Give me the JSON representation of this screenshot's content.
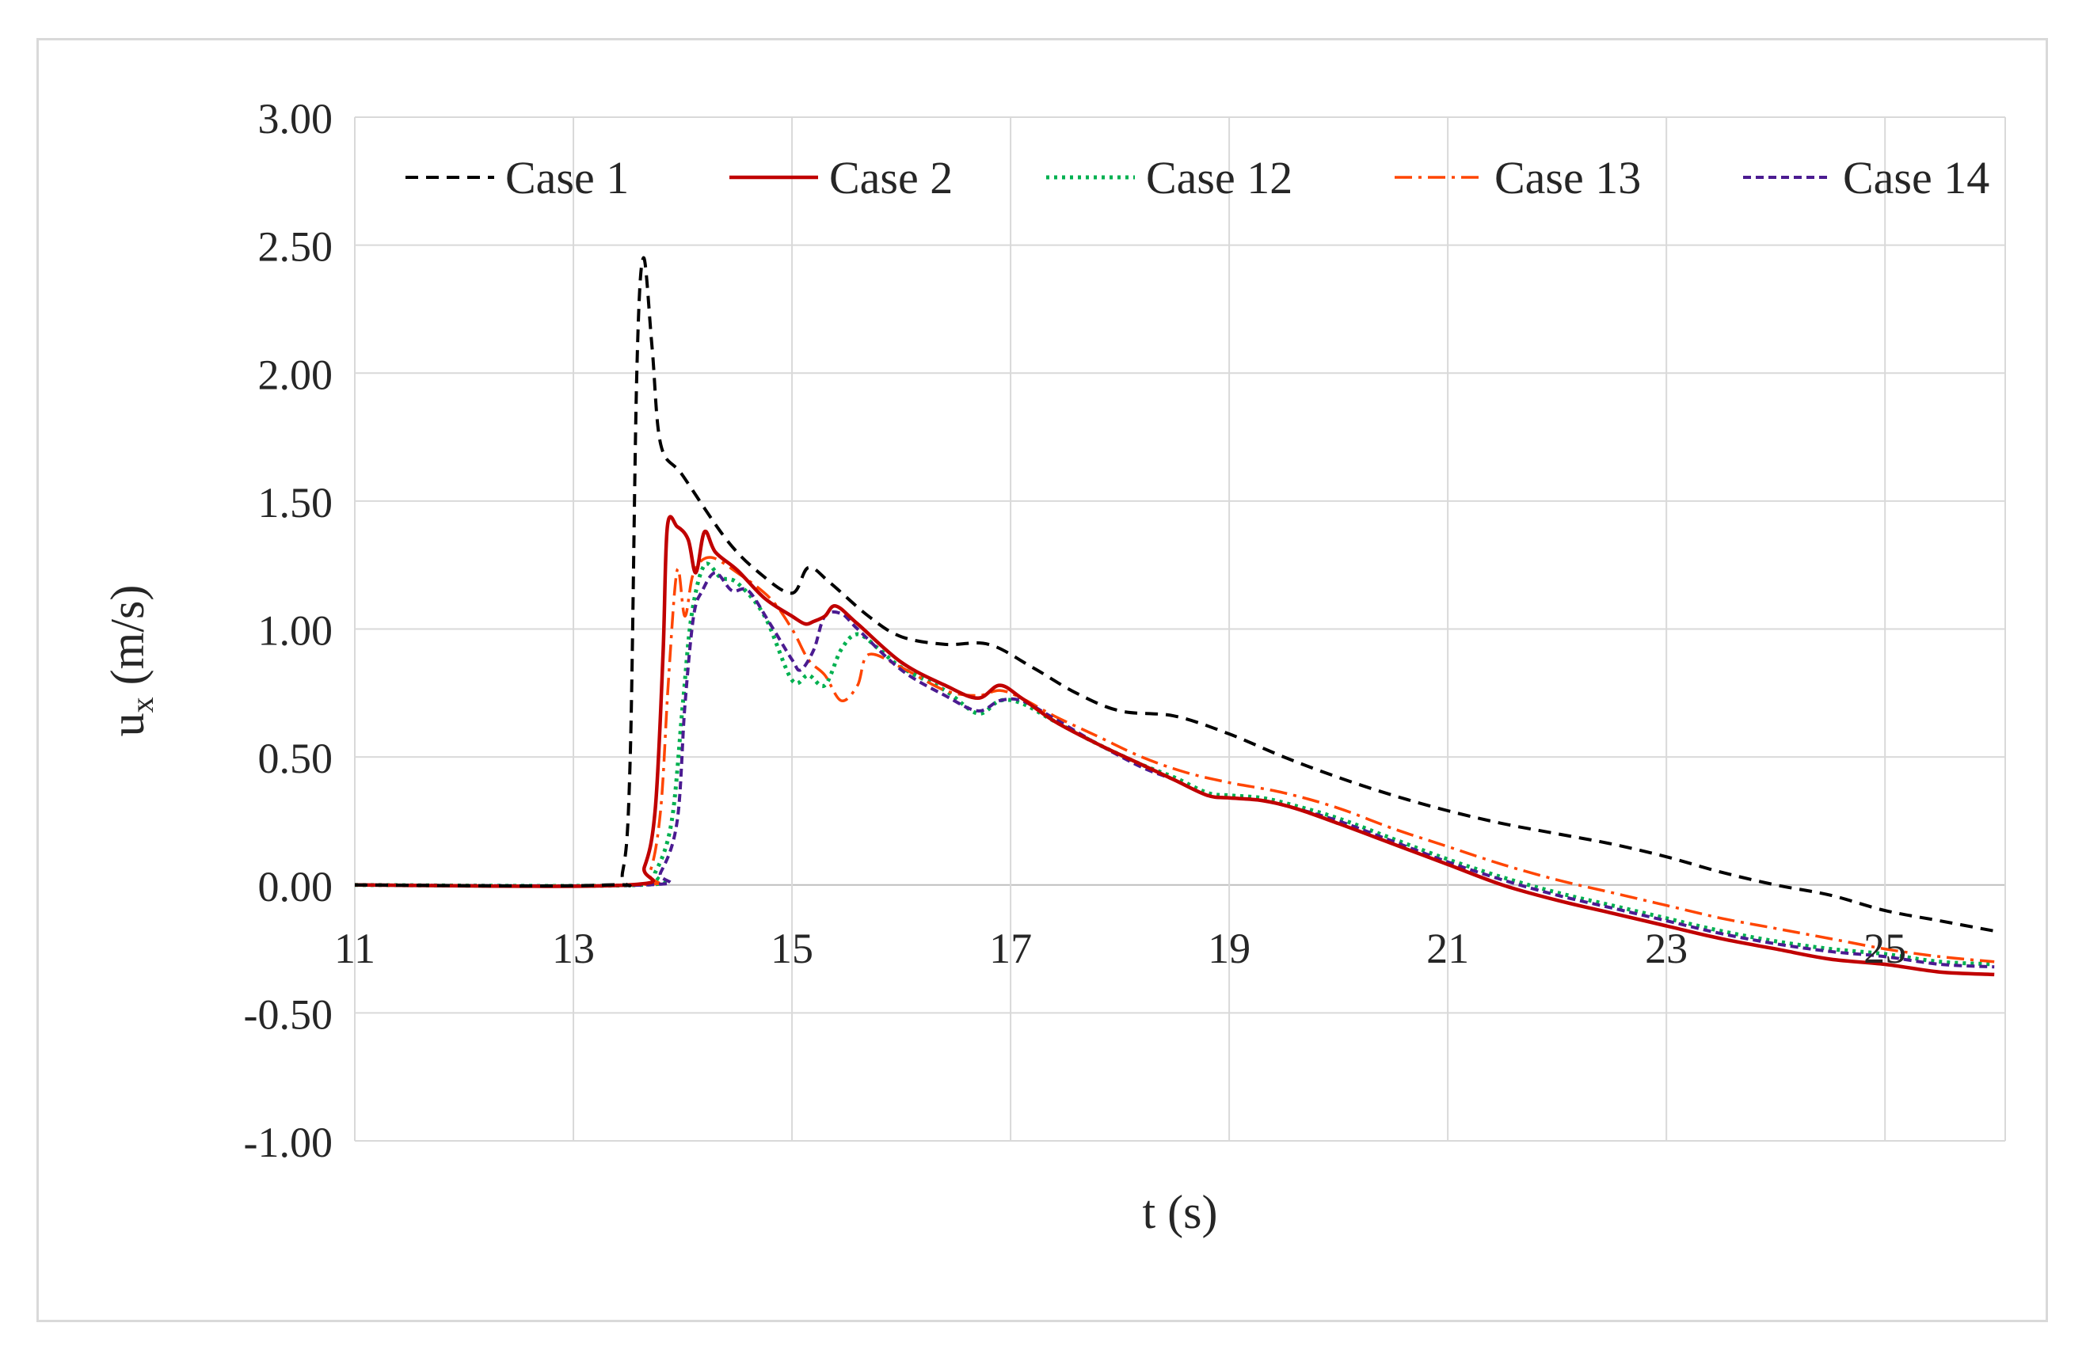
{
  "chart_data": {
    "type": "line",
    "title": "",
    "xlabel": "t (s)",
    "ylabel_main": "u",
    "ylabel_sub": "x",
    "ylabel_rest": " (m/s)",
    "xlim": [
      11,
      26.1
    ],
    "ylim": [
      -1.0,
      3.0
    ],
    "x_ticks": [
      11,
      13,
      15,
      17,
      19,
      21,
      23,
      25
    ],
    "x_tick_labels": [
      "11",
      "13",
      "15",
      "17",
      "19",
      "21",
      "23",
      "25"
    ],
    "y_ticks": [
      3.0,
      2.5,
      2.0,
      1.5,
      1.0,
      0.5,
      0.0,
      -0.5,
      -1.0
    ],
    "y_tick_labels": [
      "3.00",
      "2.50",
      "2.00",
      "1.50",
      "1.00",
      "0.50",
      "0.00",
      "-0.50",
      "-1.00"
    ],
    "grid": true,
    "legend_position": "top",
    "series": [
      {
        "name": "Case 1",
        "color": "#000000",
        "dash": "dashed",
        "points": [
          [
            11,
            0
          ],
          [
            13.3,
            0
          ],
          [
            13.45,
            0.05
          ],
          [
            13.52,
            0.5
          ],
          [
            13.58,
            2.0
          ],
          [
            13.64,
            2.45
          ],
          [
            13.72,
            2.1
          ],
          [
            13.8,
            1.72
          ],
          [
            14.0,
            1.6
          ],
          [
            14.4,
            1.35
          ],
          [
            14.7,
            1.22
          ],
          [
            15.0,
            1.14
          ],
          [
            15.15,
            1.24
          ],
          [
            15.35,
            1.18
          ],
          [
            15.7,
            1.05
          ],
          [
            16.0,
            0.97
          ],
          [
            16.4,
            0.94
          ],
          [
            16.8,
            0.94
          ],
          [
            17.2,
            0.85
          ],
          [
            17.6,
            0.75
          ],
          [
            18.0,
            0.68
          ],
          [
            18.5,
            0.66
          ],
          [
            19.0,
            0.59
          ],
          [
            19.5,
            0.5
          ],
          [
            20.0,
            0.42
          ],
          [
            20.5,
            0.35
          ],
          [
            21.0,
            0.29
          ],
          [
            21.5,
            0.24
          ],
          [
            22.0,
            0.2
          ],
          [
            22.5,
            0.16
          ],
          [
            23.0,
            0.11
          ],
          [
            23.5,
            0.05
          ],
          [
            24.0,
            0.0
          ],
          [
            24.5,
            -0.04
          ],
          [
            25.0,
            -0.1
          ],
          [
            25.5,
            -0.14
          ],
          [
            26.0,
            -0.18
          ]
        ]
      },
      {
        "name": "Case 2",
        "color": "#c00000",
        "dash": "solid",
        "points": [
          [
            11,
            0
          ],
          [
            13.5,
            0
          ],
          [
            13.65,
            0.07
          ],
          [
            13.75,
            0.3
          ],
          [
            13.82,
            0.9
          ],
          [
            13.86,
            1.4
          ],
          [
            13.95,
            1.4
          ],
          [
            14.05,
            1.35
          ],
          [
            14.12,
            1.22
          ],
          [
            14.2,
            1.38
          ],
          [
            14.3,
            1.3
          ],
          [
            14.5,
            1.23
          ],
          [
            14.75,
            1.12
          ],
          [
            15.0,
            1.05
          ],
          [
            15.12,
            1.02
          ],
          [
            15.2,
            1.03
          ],
          [
            15.3,
            1.05
          ],
          [
            15.4,
            1.09
          ],
          [
            15.6,
            1.02
          ],
          [
            16.0,
            0.87
          ],
          [
            16.4,
            0.78
          ],
          [
            16.7,
            0.73
          ],
          [
            16.9,
            0.78
          ],
          [
            17.1,
            0.73
          ],
          [
            17.4,
            0.64
          ],
          [
            17.8,
            0.55
          ],
          [
            18.2,
            0.47
          ],
          [
            18.5,
            0.41
          ],
          [
            18.8,
            0.35
          ],
          [
            19.0,
            0.34
          ],
          [
            19.3,
            0.33
          ],
          [
            19.6,
            0.3
          ],
          [
            20.0,
            0.24
          ],
          [
            20.5,
            0.16
          ],
          [
            21.0,
            0.08
          ],
          [
            21.5,
            0.0
          ],
          [
            22.0,
            -0.06
          ],
          [
            22.5,
            -0.11
          ],
          [
            23.0,
            -0.16
          ],
          [
            23.5,
            -0.21
          ],
          [
            24.0,
            -0.25
          ],
          [
            24.5,
            -0.29
          ],
          [
            25.0,
            -0.31
          ],
          [
            25.5,
            -0.34
          ],
          [
            26.0,
            -0.35
          ]
        ]
      },
      {
        "name": "Case 12",
        "color": "#00b050",
        "dash": "dotted",
        "points": [
          [
            11,
            0
          ],
          [
            13.6,
            0
          ],
          [
            13.75,
            0.05
          ],
          [
            13.9,
            0.25
          ],
          [
            14.0,
            0.7
          ],
          [
            14.08,
            1.05
          ],
          [
            14.2,
            1.25
          ],
          [
            14.35,
            1.2
          ],
          [
            14.5,
            1.18
          ],
          [
            14.75,
            1.05
          ],
          [
            15.0,
            0.8
          ],
          [
            15.15,
            0.82
          ],
          [
            15.3,
            0.78
          ],
          [
            15.45,
            0.92
          ],
          [
            15.6,
            0.98
          ],
          [
            15.8,
            0.92
          ],
          [
            16.0,
            0.85
          ],
          [
            16.4,
            0.76
          ],
          [
            16.7,
            0.67
          ],
          [
            16.9,
            0.72
          ],
          [
            17.1,
            0.71
          ],
          [
            17.4,
            0.64
          ],
          [
            17.8,
            0.55
          ],
          [
            18.2,
            0.47
          ],
          [
            18.5,
            0.42
          ],
          [
            18.8,
            0.36
          ],
          [
            19.0,
            0.35
          ],
          [
            19.3,
            0.34
          ],
          [
            19.6,
            0.31
          ],
          [
            20.0,
            0.26
          ],
          [
            20.5,
            0.18
          ],
          [
            21.0,
            0.1
          ],
          [
            21.5,
            0.03
          ],
          [
            22.0,
            -0.03
          ],
          [
            22.5,
            -0.08
          ],
          [
            23.0,
            -0.13
          ],
          [
            23.5,
            -0.18
          ],
          [
            24.0,
            -0.22
          ],
          [
            24.5,
            -0.25
          ],
          [
            25.0,
            -0.27
          ],
          [
            25.5,
            -0.3
          ],
          [
            26.0,
            -0.31
          ]
        ]
      },
      {
        "name": "Case 13",
        "color": "#ff4500",
        "dash": "dashdot",
        "points": [
          [
            11,
            0
          ],
          [
            13.55,
            0
          ],
          [
            13.7,
            0.05
          ],
          [
            13.8,
            0.3
          ],
          [
            13.87,
            0.8
          ],
          [
            13.95,
            1.23
          ],
          [
            14.02,
            1.05
          ],
          [
            14.1,
            1.22
          ],
          [
            14.25,
            1.28
          ],
          [
            14.5,
            1.22
          ],
          [
            14.8,
            1.12
          ],
          [
            15.0,
            1.0
          ],
          [
            15.15,
            0.88
          ],
          [
            15.3,
            0.82
          ],
          [
            15.45,
            0.72
          ],
          [
            15.6,
            0.78
          ],
          [
            15.7,
            0.9
          ],
          [
            16.0,
            0.85
          ],
          [
            16.4,
            0.76
          ],
          [
            16.7,
            0.74
          ],
          [
            16.9,
            0.76
          ],
          [
            17.1,
            0.73
          ],
          [
            17.4,
            0.66
          ],
          [
            17.8,
            0.58
          ],
          [
            18.2,
            0.5
          ],
          [
            18.6,
            0.44
          ],
          [
            19.0,
            0.4
          ],
          [
            19.5,
            0.36
          ],
          [
            20.0,
            0.3
          ],
          [
            20.5,
            0.22
          ],
          [
            21.0,
            0.15
          ],
          [
            21.5,
            0.08
          ],
          [
            22.0,
            0.02
          ],
          [
            22.5,
            -0.03
          ],
          [
            23.0,
            -0.08
          ],
          [
            23.5,
            -0.13
          ],
          [
            24.0,
            -0.17
          ],
          [
            24.5,
            -0.21
          ],
          [
            25.0,
            -0.25
          ],
          [
            25.5,
            -0.28
          ],
          [
            26.0,
            -0.3
          ]
        ]
      },
      {
        "name": "Case 14",
        "color": "#4b1b91",
        "dash": "shortdash",
        "points": [
          [
            11,
            0
          ],
          [
            13.65,
            0
          ],
          [
            13.8,
            0.05
          ],
          [
            13.95,
            0.25
          ],
          [
            14.02,
            0.7
          ],
          [
            14.1,
            1.05
          ],
          [
            14.18,
            1.15
          ],
          [
            14.3,
            1.22
          ],
          [
            14.45,
            1.15
          ],
          [
            14.6,
            1.15
          ],
          [
            14.8,
            1.02
          ],
          [
            15.0,
            0.88
          ],
          [
            15.08,
            0.84
          ],
          [
            15.2,
            0.92
          ],
          [
            15.3,
            1.05
          ],
          [
            15.45,
            1.06
          ],
          [
            15.6,
            1.0
          ],
          [
            16.0,
            0.84
          ],
          [
            16.4,
            0.74
          ],
          [
            16.7,
            0.68
          ],
          [
            16.9,
            0.72
          ],
          [
            17.1,
            0.72
          ],
          [
            17.4,
            0.65
          ],
          [
            17.8,
            0.55
          ],
          [
            18.2,
            0.46
          ],
          [
            18.5,
            0.41
          ],
          [
            18.8,
            0.35
          ],
          [
            19.0,
            0.34
          ],
          [
            19.3,
            0.33
          ],
          [
            19.6,
            0.3
          ],
          [
            20.0,
            0.25
          ],
          [
            20.5,
            0.17
          ],
          [
            21.0,
            0.09
          ],
          [
            21.5,
            0.02
          ],
          [
            22.0,
            -0.04
          ],
          [
            22.5,
            -0.09
          ],
          [
            23.0,
            -0.14
          ],
          [
            23.5,
            -0.19
          ],
          [
            24.0,
            -0.23
          ],
          [
            24.5,
            -0.26
          ],
          [
            25.0,
            -0.28
          ],
          [
            25.5,
            -0.31
          ],
          [
            26.0,
            -0.32
          ]
        ]
      }
    ]
  }
}
